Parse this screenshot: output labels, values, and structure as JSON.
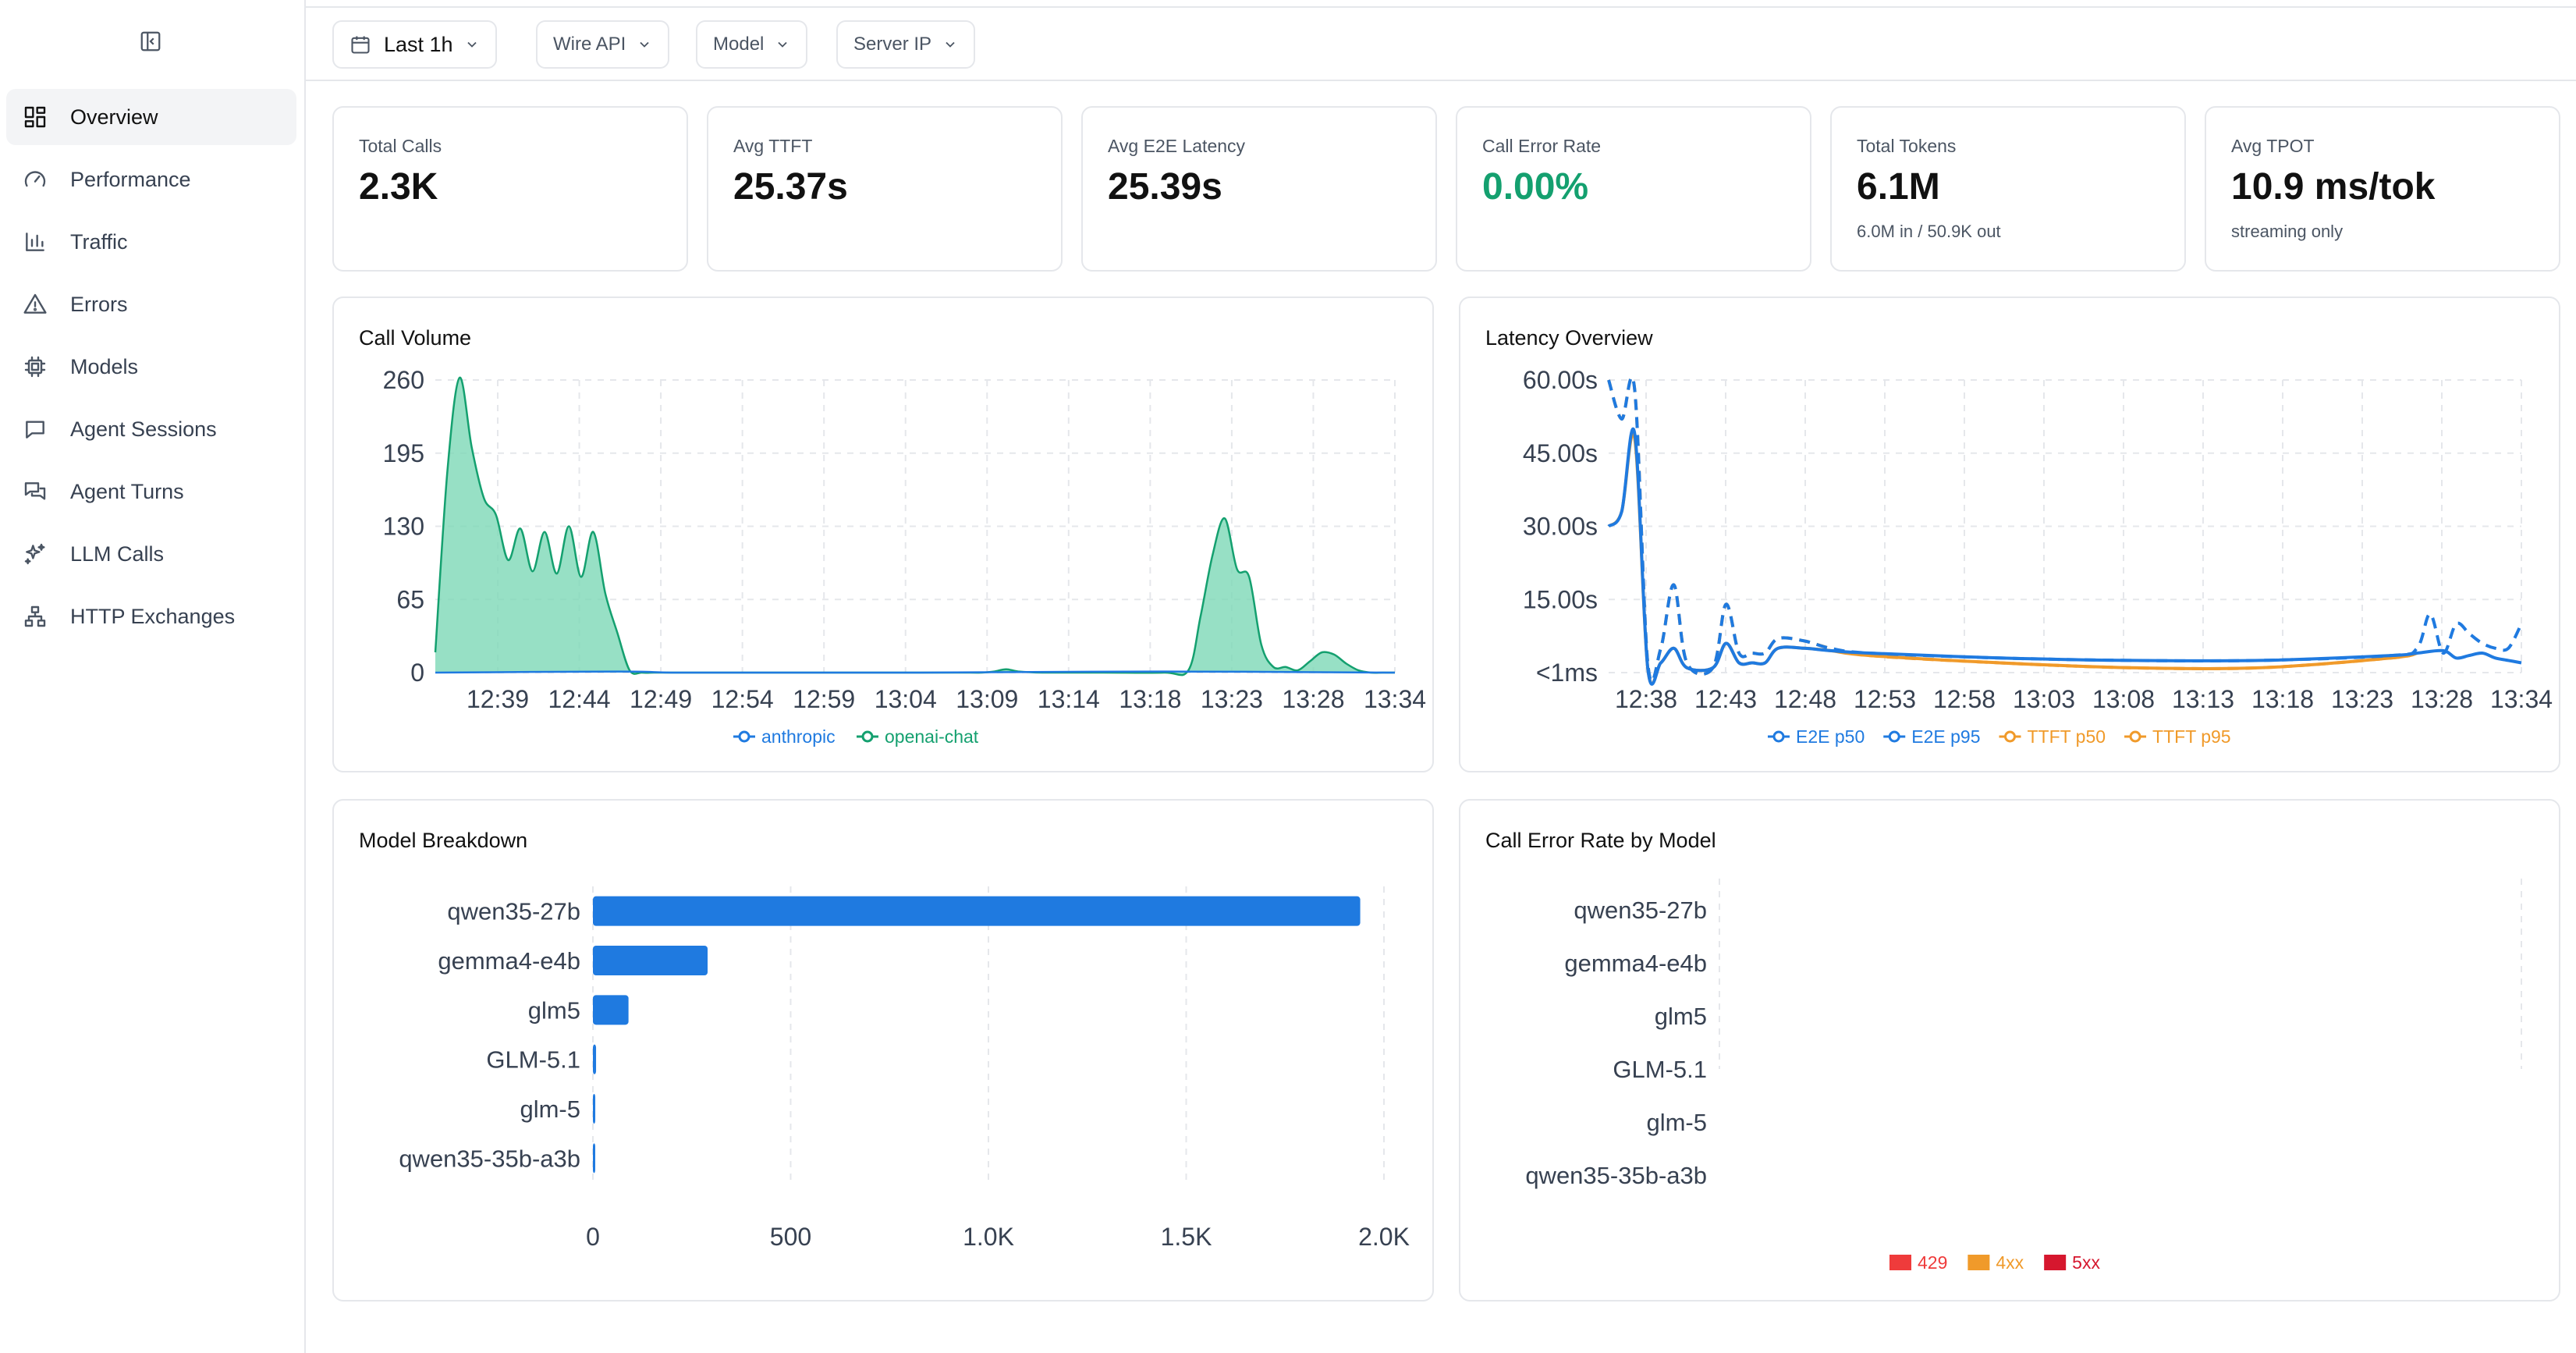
{
  "nav": {
    "items": [
      {
        "label": "Overview",
        "icon": "grid-icon"
      },
      {
        "label": "Performance",
        "icon": "gauge-icon"
      },
      {
        "label": "Traffic",
        "icon": "bar-chart-icon"
      },
      {
        "label": "Errors",
        "icon": "warning-icon"
      },
      {
        "label": "Models",
        "icon": "chip-icon"
      },
      {
        "label": "Agent Sessions",
        "icon": "chat-icon"
      },
      {
        "label": "Agent Turns",
        "icon": "chats-icon"
      },
      {
        "label": "LLM Calls",
        "icon": "sparkles-icon"
      },
      {
        "label": "HTTP Exchanges",
        "icon": "network-icon"
      }
    ],
    "active_index": 0
  },
  "filters": {
    "time_range": "Last 1h",
    "wire_api": "Wire API",
    "model": "Model",
    "server_ip": "Server IP"
  },
  "kpis": {
    "total_calls": {
      "label": "Total Calls",
      "value": "2.3K"
    },
    "avg_ttft": {
      "label": "Avg TTFT",
      "value": "25.37s"
    },
    "avg_e2e": {
      "label": "Avg E2E Latency",
      "value": "25.39s"
    },
    "error_rate": {
      "label": "Call Error Rate",
      "value": "0.00%"
    },
    "total_tokens": {
      "label": "Total Tokens",
      "value": "6.1M",
      "sub": "6.0M in / 50.9K out"
    },
    "avg_tpot": {
      "label": "Avg TPOT",
      "value": "10.9 ms/tok",
      "sub": "streaming only"
    }
  },
  "colors": {
    "green": "#14a06f",
    "green_fill": "#7dd8b6",
    "blue": "#1f7ae0",
    "orange": "#f09a2a",
    "red_429": "#ef3b3b",
    "orange_4xx": "#f09a2a",
    "red_5xx": "#d6172e"
  },
  "panels": {
    "call_volume": "Call Volume",
    "latency": "Latency Overview",
    "model_breakdown": "Model Breakdown",
    "error_by_model": "Call Error Rate by Model"
  },
  "chart_data": [
    {
      "id": "call_volume",
      "type": "area",
      "title": "Call Volume",
      "x_ticks": [
        "12:39",
        "12:44",
        "12:49",
        "12:54",
        "12:59",
        "13:04",
        "13:09",
        "13:14",
        "13:18",
        "13:23",
        "13:28",
        "13:34"
      ],
      "y_ticks": [
        "0",
        "65",
        "130",
        "195",
        "260"
      ],
      "ylim": [
        0,
        260
      ],
      "grid": true,
      "legend_position": "bottom",
      "series": [
        {
          "name": "anthropic",
          "color": "#1f7ae0",
          "x": [
            0,
            15,
            20,
            30,
            40,
            60,
            79
          ],
          "y": [
            0,
            1,
            0,
            0,
            0,
            1,
            0
          ]
        },
        {
          "name": "openai-chat",
          "color": "#14a06f",
          "x": [
            0,
            1,
            2,
            3,
            4,
            5,
            6,
            7,
            8,
            9,
            10,
            11,
            12,
            13,
            14,
            15,
            16,
            17,
            18,
            19,
            20,
            21,
            22,
            23,
            24,
            25,
            26,
            27,
            28,
            29,
            30,
            35,
            40,
            44,
            45,
            46,
            47,
            48,
            50,
            55,
            60,
            62,
            63,
            64,
            65,
            66,
            67,
            68,
            69,
            70,
            71,
            72,
            73,
            74,
            75,
            76,
            77,
            78,
            79
          ],
          "y": [
            18,
            180,
            262,
            200,
            155,
            140,
            100,
            128,
            90,
            125,
            88,
            130,
            85,
            125,
            70,
            35,
            2,
            0,
            0,
            0,
            0,
            0,
            0,
            0,
            0,
            0,
            0,
            0,
            0,
            0,
            0,
            0,
            0,
            0,
            0,
            1,
            3,
            1,
            0,
            0,
            0,
            2,
            50,
            105,
            137,
            92,
            85,
            25,
            5,
            5,
            2,
            10,
            18,
            16,
            8,
            2,
            0,
            0,
            0
          ]
        }
      ]
    },
    {
      "id": "latency",
      "type": "line",
      "title": "Latency Overview",
      "x_ticks": [
        "12:38",
        "12:43",
        "12:48",
        "12:53",
        "12:58",
        "13:03",
        "13:08",
        "13:13",
        "13:18",
        "13:23",
        "13:28",
        "13:34"
      ],
      "y_ticks": [
        "<1ms",
        "15.00s",
        "30.00s",
        "45.00s",
        "60.00s"
      ],
      "ylim": [
        0,
        60
      ],
      "grid": true,
      "legend_position": "bottom",
      "series": [
        {
          "name": "E2E p50",
          "color": "#1f7ae0",
          "dash": false,
          "x": [
            0,
            1,
            2,
            3,
            4,
            5,
            6,
            8,
            9,
            10,
            11,
            12,
            13,
            15,
            17,
            20,
            30,
            40,
            50,
            60,
            62,
            64,
            65,
            66,
            67,
            68,
            69,
            70
          ],
          "y": [
            30,
            33,
            49,
            1,
            2,
            5,
            1,
            1,
            6,
            2,
            2,
            2,
            5,
            5,
            4.5,
            4,
            3,
            2.5,
            2.5,
            3.5,
            4,
            4.5,
            3,
            3.5,
            4,
            3,
            2.5,
            2
          ]
        },
        {
          "name": "E2E p95",
          "color": "#1f7ae0",
          "dash": true,
          "x": [
            0,
            1,
            2,
            3,
            4,
            5,
            6,
            8,
            9,
            10,
            11,
            12,
            13,
            15,
            17,
            20,
            30,
            40,
            50,
            60,
            62,
            63,
            64,
            65,
            66,
            67,
            68,
            69,
            70
          ],
          "y": [
            60,
            52,
            58,
            2,
            5,
            18,
            2,
            1,
            14,
            4,
            4,
            4,
            7,
            6.5,
            5,
            4,
            3,
            2.5,
            2.5,
            3.5,
            5,
            12,
            4,
            10,
            8,
            6,
            5,
            5,
            10
          ]
        },
        {
          "name": "TTFT p50",
          "color": "#f09a2a",
          "dash": false,
          "x": [
            0,
            1,
            2,
            3,
            4,
            5,
            6,
            8,
            9,
            10,
            11,
            12,
            13,
            15,
            17,
            20,
            30,
            40,
            50,
            60,
            62
          ],
          "y": [
            30,
            33,
            48,
            1,
            2,
            5,
            1,
            1,
            6,
            2,
            2,
            2,
            5,
            5,
            4.5,
            3.5,
            2,
            1,
            1,
            3,
            4
          ]
        },
        {
          "name": "TTFT p95",
          "color": "#f09a2a",
          "dash": true,
          "x": [
            0,
            1,
            2,
            3,
            4,
            5,
            6,
            8,
            9,
            10,
            11,
            12,
            13,
            15,
            17,
            20,
            30,
            40,
            50,
            60,
            62
          ],
          "y": [
            60,
            52,
            58,
            2,
            5,
            18,
            2,
            1,
            14,
            4,
            4,
            4,
            7,
            6.5,
            5,
            3.5,
            2,
            1,
            1,
            3,
            4
          ]
        }
      ]
    },
    {
      "id": "model_breakdown",
      "type": "bar",
      "orientation": "horizontal",
      "title": "Model Breakdown",
      "categories": [
        "qwen35-27b",
        "gemma4-e4b",
        "glm5",
        "GLM-5.1",
        "glm-5",
        "qwen35-35b-a3b"
      ],
      "values": [
        1940,
        290,
        90,
        8,
        6,
        4
      ],
      "x_ticks": [
        "0",
        "500",
        "1.0K",
        "1.5K",
        "2.0K"
      ],
      "xlim": [
        0,
        2000
      ],
      "color": "#1f7ae0",
      "grid": true
    },
    {
      "id": "error_by_model",
      "type": "bar",
      "orientation": "horizontal",
      "stacked": true,
      "title": "Call Error Rate by Model",
      "categories": [
        "qwen35-27b",
        "gemma4-e4b",
        "glm5",
        "GLM-5.1",
        "glm-5",
        "qwen35-35b-a3b"
      ],
      "series": [
        {
          "name": "429",
          "color": "#ef3b3b",
          "values": [
            0,
            0,
            0,
            0,
            0,
            0
          ]
        },
        {
          "name": "4xx",
          "color": "#f09a2a",
          "values": [
            0,
            0,
            0,
            0,
            0,
            0
          ]
        },
        {
          "name": "5xx",
          "color": "#d6172e",
          "values": [
            0,
            0,
            0,
            0,
            0,
            0
          ]
        }
      ],
      "legend_position": "bottom"
    }
  ]
}
